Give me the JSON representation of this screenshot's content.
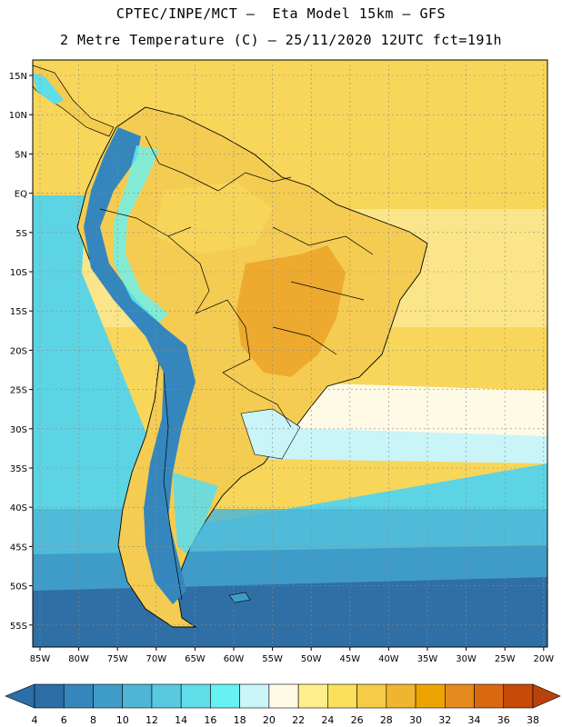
{
  "title_line1": "CPTEC/INPE/MCT –  Eta Model 15km – GFS",
  "title_line2": "2 Metre Temperature (C) – 25/11/2020 12UTC fct=191h",
  "lat_labels": [
    "15N",
    "10N",
    "5N",
    "EQ",
    "5S",
    "10S",
    "15S",
    "20S",
    "25S",
    "30S",
    "35S",
    "40S",
    "45S",
    "50S",
    "55S"
  ],
  "lon_labels": [
    "85W",
    "80W",
    "75W",
    "70W",
    "65W",
    "60W",
    "55W",
    "50W",
    "45W",
    "40W",
    "35W",
    "30W",
    "25W",
    "20W"
  ],
  "colorbar": {
    "colors": [
      "#2b6ea8",
      "#3586bd",
      "#3f9cc8",
      "#4db6d6",
      "#58c9df",
      "#5fdde9",
      "#66f2f5",
      "#c9f4f8",
      "#fffae6",
      "#ffef8a",
      "#fbe05c",
      "#f5cc47",
      "#f0b530",
      "#eea400",
      "#e58a1c",
      "#d96810",
      "#c84a08",
      "#b8420c"
    ],
    "labels": [
      "4",
      "6",
      "8",
      "10",
      "12",
      "14",
      "16",
      "18",
      "20",
      "22",
      "24",
      "26",
      "28",
      "30",
      "32",
      "34",
      "36",
      "38"
    ]
  },
  "map": {
    "ocean_north": "#f7d65a",
    "ocean_equatorial": "#fbe58a",
    "ocean_cool": "#5cd4e4",
    "ocean_cold": "#2f6fa6",
    "land_warm": "#f4cc52",
    "land_hot": "#eeaa2e",
    "andes": "#3586bd",
    "grid_color": "#9a9a9a",
    "coast_color": "#000000"
  }
}
